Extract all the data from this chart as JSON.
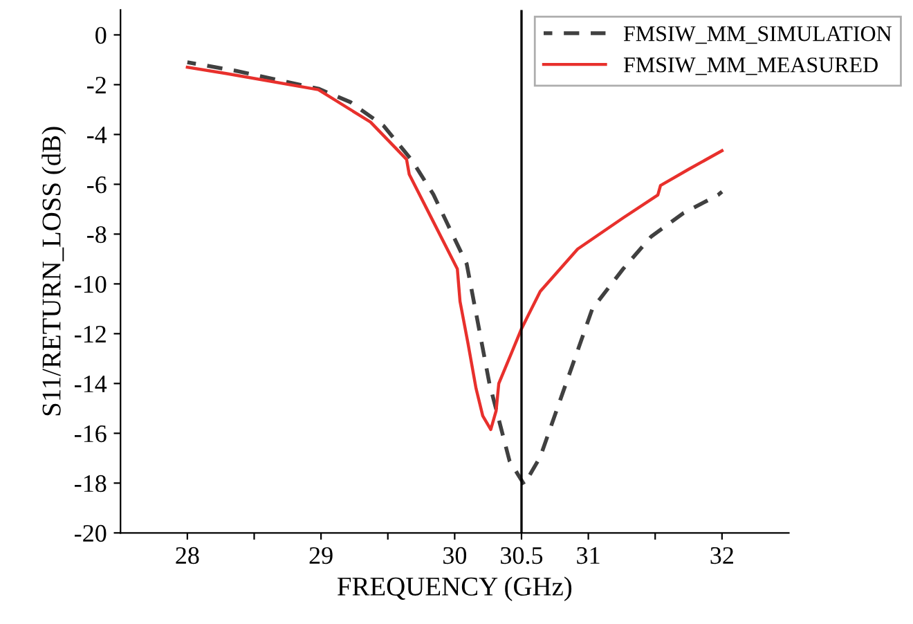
{
  "chart_data": {
    "type": "line",
    "xlabel": "FREQUENCY (GHz)",
    "ylabel": "S11/RETURN_LOSS (dB)",
    "xlim": [
      27.5,
      32.5
    ],
    "xticks": [
      28,
      {
        "value": 28.5,
        "label": null
      },
      29,
      {
        "value": 29.5,
        "label": null
      },
      30,
      30.5,
      31,
      {
        "value": 31.5,
        "label": null
      },
      32
    ],
    "ylim": [
      -20,
      1
    ],
    "yticks": [
      0,
      -2,
      -4,
      -6,
      -8,
      -10,
      -12,
      -14,
      -16,
      -18,
      -20
    ],
    "legend": "top right",
    "grid": false,
    "ref_lines": [
      {
        "axis": "x",
        "value": 30.5,
        "color": "#000000"
      }
    ],
    "series": [
      {
        "name": "FMSIW_MM_SIMULATION",
        "color": "#404040",
        "line_style": "dashed",
        "x": [
          28,
          28.36,
          28.98,
          29.22,
          29.47,
          29.68,
          29.84,
          30.09,
          30.26,
          30.41,
          30.52,
          30.64,
          30.82,
          31.03,
          31.26,
          31.47,
          31.71,
          31.97,
          32
        ],
        "values": [
          -1.1,
          -1.44,
          -2.16,
          -2.7,
          -3.66,
          -5.04,
          -6.4,
          -9.2,
          -14.0,
          -17.1,
          -18.06,
          -16.95,
          -14.2,
          -11.0,
          -9.4,
          -8.1,
          -7.16,
          -6.43,
          -6.3
        ]
      },
      {
        "name": "FMSIW_MM_MEASURED",
        "color": "#e8302c",
        "line_style": "solid",
        "x": [
          28,
          28.29,
          28.98,
          29.37,
          29.64,
          29.66,
          29.84,
          30.02,
          30.04,
          30.1,
          30.16,
          30.21,
          30.27,
          30.31,
          30.33,
          30.4,
          30.5,
          30.64,
          30.92,
          31.26,
          31.52,
          31.54,
          31.75,
          32.0
        ],
        "values": [
          -1.3,
          -1.55,
          -2.2,
          -3.5,
          -5.0,
          -5.6,
          -7.5,
          -9.4,
          -10.7,
          -12.4,
          -14.2,
          -15.3,
          -15.85,
          -15.1,
          -14.0,
          -13.1,
          -11.8,
          -10.3,
          -8.6,
          -7.35,
          -6.43,
          -6.05,
          -5.4,
          -4.65
        ]
      }
    ]
  }
}
